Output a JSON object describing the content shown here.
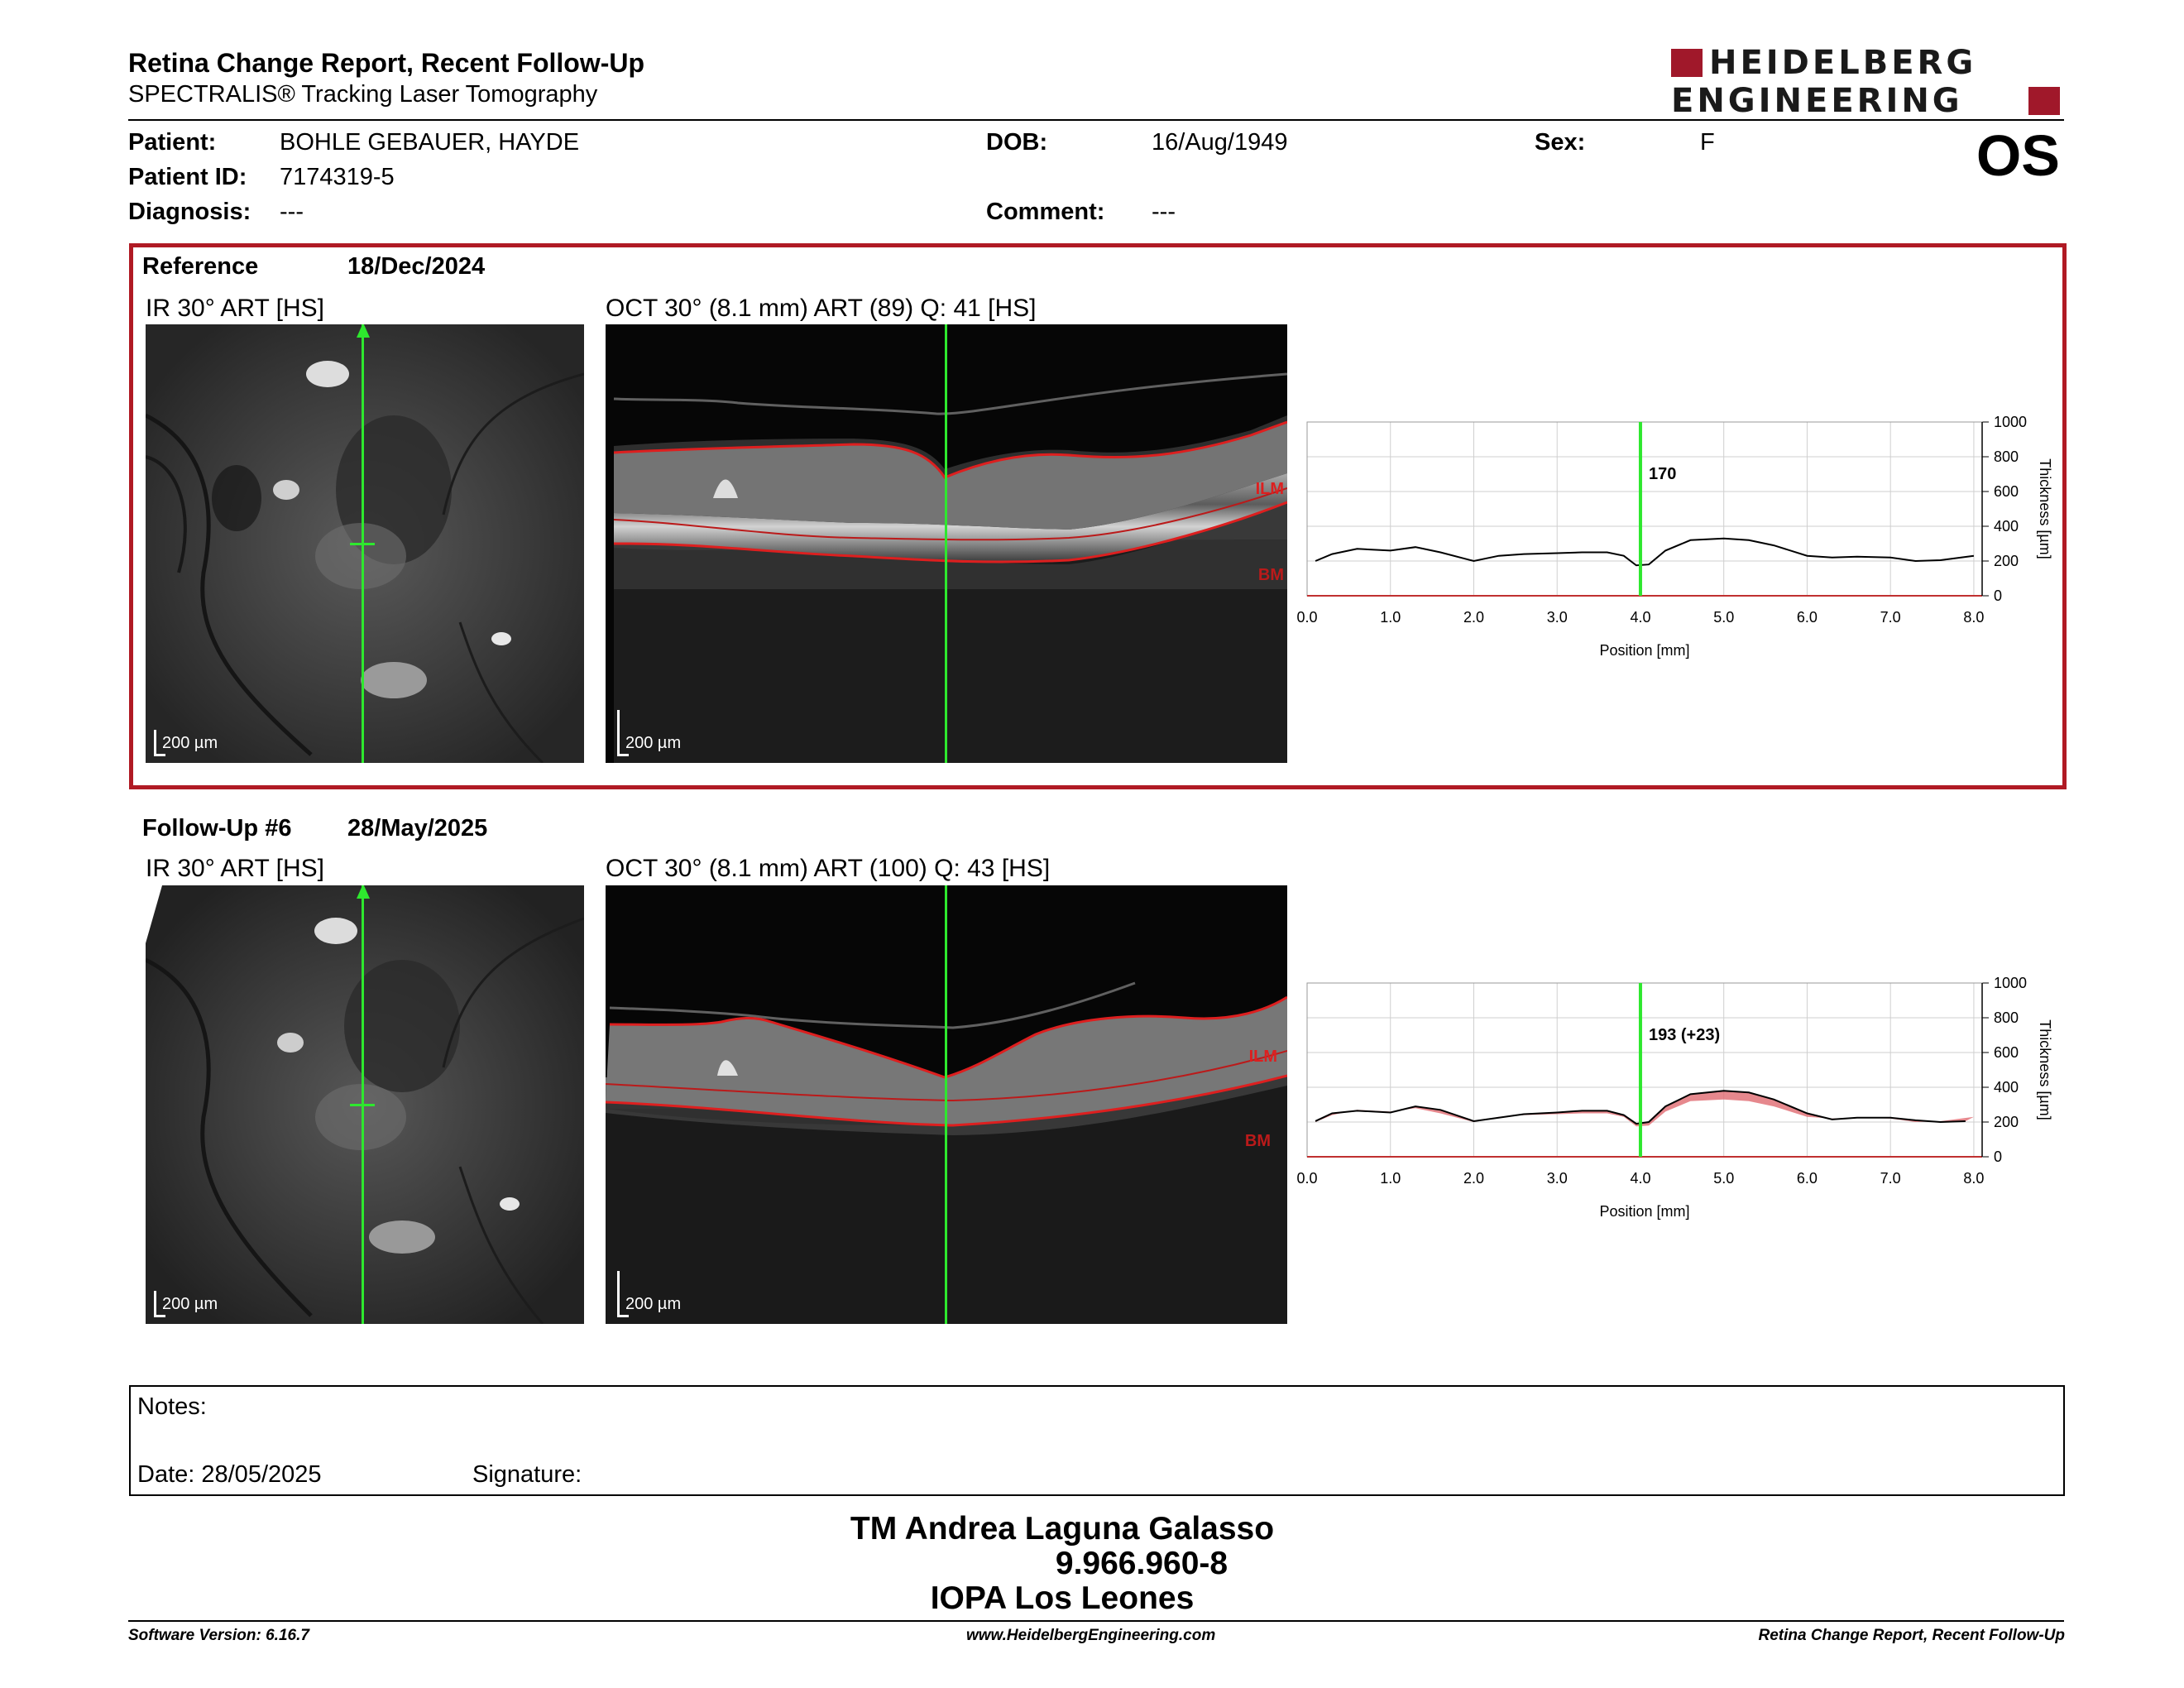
{
  "header": {
    "title": "Retina Change Report, Recent Follow-Up",
    "subtitle": "SPECTRALIS® Tracking Laser Tomography",
    "logo_line1": "HEIDELBERG",
    "logo_line2": "ENGINEERING",
    "eye": "OS",
    "brand_color": "#a0182a"
  },
  "patient": {
    "patient_label": "Patient:",
    "patient_value": "BOHLE GEBAUER, HAYDE",
    "id_label": "Patient ID:",
    "id_value": "7174319-5",
    "diagnosis_label": "Diagnosis:",
    "diagnosis_value": "---",
    "dob_label": "DOB:",
    "dob_value": "16/Aug/1949",
    "comment_label": "Comment:",
    "comment_value": "---",
    "sex_label": "Sex:",
    "sex_value": "F"
  },
  "reference": {
    "label": "Reference",
    "date": "18/Dec/2024",
    "ir_caption": "IR 30° ART [HS]",
    "oct_caption": "OCT 30° (8.1 mm) ART (89) Q: 41 [HS]",
    "scale_ir": "200 µm",
    "scale_oct": "200 µm",
    "ilm": "ILM",
    "bm": "BM",
    "cursor_value": "170",
    "frame_color": "#b01a24"
  },
  "followup": {
    "label": "Follow-Up #6",
    "date": "28/May/2025",
    "ir_caption": "IR 30° ART [HS]",
    "oct_caption": "OCT 30° (8.1 mm) ART (100) Q: 43 [HS]",
    "scale_ir": "200 µm",
    "scale_oct": "200 µm",
    "ilm": "ILM",
    "bm": "BM",
    "cursor_value": "193 (+23)"
  },
  "chart_data": [
    {
      "type": "line",
      "name": "reference-thickness",
      "xlabel": "Position [mm]",
      "ylabel": "Thickness [µm]",
      "xlim": [
        0,
        8.1
      ],
      "ylim": [
        0,
        1000
      ],
      "x_ticks": [
        "0.0",
        "1.0",
        "2.0",
        "3.0",
        "4.0",
        "5.0",
        "6.0",
        "7.0",
        "8.0"
      ],
      "y_ticks": [
        "0",
        "200",
        "400",
        "600",
        "800",
        "1000"
      ],
      "grid": true,
      "cursor_x": 4.0,
      "cursor_label": "170",
      "series": [
        {
          "x": [
            0.1,
            0.3,
            0.6,
            1.0,
            1.3,
            1.6,
            2.0,
            2.3,
            2.6,
            3.0,
            3.3,
            3.6,
            3.8,
            3.95,
            4.1,
            4.3,
            4.6,
            5.0,
            5.3,
            5.6,
            6.0,
            6.3,
            6.6,
            7.0,
            7.3,
            7.6,
            8.0
          ],
          "values": [
            200,
            240,
            270,
            260,
            280,
            250,
            200,
            230,
            240,
            245,
            250,
            250,
            230,
            175,
            180,
            260,
            320,
            330,
            320,
            290,
            230,
            220,
            225,
            220,
            200,
            205,
            230
          ]
        }
      ]
    },
    {
      "type": "line",
      "name": "followup-thickness",
      "xlabel": "Position [mm]",
      "ylabel": "Thickness [µm]",
      "xlim": [
        0,
        8.1
      ],
      "ylim": [
        0,
        1000
      ],
      "x_ticks": [
        "0.0",
        "1.0",
        "2.0",
        "3.0",
        "4.0",
        "5.0",
        "6.0",
        "7.0",
        "8.0"
      ],
      "y_ticks": [
        "0",
        "200",
        "400",
        "600",
        "800",
        "1000"
      ],
      "grid": true,
      "cursor_x": 4.0,
      "cursor_label": "193 (+23)",
      "series": [
        {
          "x": [
            0.1,
            0.3,
            0.6,
            1.0,
            1.3,
            1.6,
            2.0,
            2.3,
            2.6,
            3.0,
            3.3,
            3.6,
            3.8,
            3.95,
            4.1,
            4.3,
            4.6,
            5.0,
            5.3,
            5.6,
            6.0,
            6.3,
            6.6,
            7.0,
            7.3,
            7.6,
            7.9
          ],
          "values": [
            205,
            250,
            265,
            255,
            290,
            270,
            205,
            225,
            245,
            255,
            265,
            265,
            240,
            190,
            200,
            290,
            360,
            380,
            370,
            330,
            250,
            215,
            225,
            225,
            210,
            200,
            205
          ]
        }
      ]
    }
  ],
  "notes": {
    "notes_label": "Notes:",
    "date_label": "Date: 28/05/2025",
    "signature_label": "Signature:"
  },
  "signature_block": {
    "name": "TM Andrea Laguna Galasso",
    "id": "9.966.960-8",
    "institution": "IOPA Los Leones"
  },
  "footer": {
    "software": "Software Version: 6.16.7",
    "website": "www.HeidelbergEngineering.com",
    "report": "Retina Change Report, Recent Follow-Up"
  }
}
